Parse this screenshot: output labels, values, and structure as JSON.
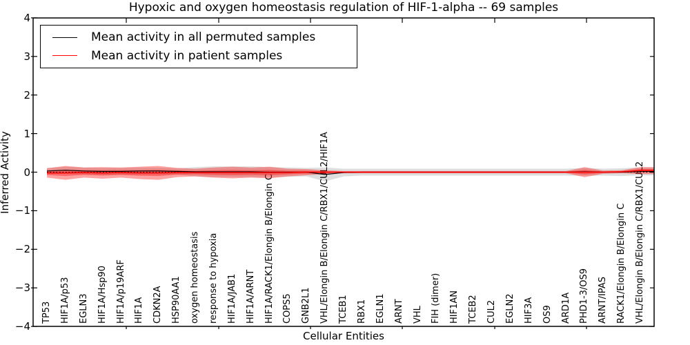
{
  "title": "Hypoxic and oxygen homeostasis regulation of HIF-1-alpha -- 69 samples",
  "axes": {
    "xlabel": "Cellular Entities",
    "ylabel": "Inferred Activity",
    "ylim": [
      -4,
      4
    ],
    "ytick_labels": [
      "4",
      "3",
      "2",
      "1",
      "0",
      "−1",
      "−2",
      "−3",
      "−4"
    ],
    "ytick_values": [
      4,
      3,
      2,
      1,
      0,
      -1,
      -2,
      -3,
      -4
    ]
  },
  "legend": {
    "position": "upper-left",
    "items": [
      {
        "label": "Mean activity in all permuted samples",
        "color": "#000000"
      },
      {
        "label": "Mean activity in patient samples",
        "color": "#ff0000"
      }
    ]
  },
  "chart_data": {
    "type": "line",
    "title": "Hypoxic and oxygen homeostasis regulation of HIF-1-alpha -- 69 samples",
    "xlabel": "Cellular Entities",
    "ylabel": "Inferred Activity",
    "ylim": [
      -4,
      4
    ],
    "grid": false,
    "zero_reference_line": {
      "style": "dotted",
      "color": "#000000",
      "y": 0
    },
    "categories": [
      "TP53",
      "HIF1A/p53",
      "EGLN3",
      "HIF1A/Hsp90",
      "HIF1A/p19ARF",
      "HIF1A",
      "CDKN2A",
      "HSP90AA1",
      "oxygen homeostasis",
      "response to hypoxia",
      "HIF1A/JAB1",
      "HIF1A/ARNT",
      "HIF1A/RACK1/Elongin B/Elongin C",
      "COPS5",
      "GNB2L1",
      "VHL/Elongin B/Elongin C/RBX1/CUL2/HIF1A",
      "TCEB1",
      "RBX1",
      "EGLN1",
      "ARNT",
      "VHL",
      "FIH (dimer)",
      "HIF1AN",
      "TCEB2",
      "CUL2",
      "EGLN2",
      "HIF3A",
      "OS9",
      "ARD1A",
      "PHD1-3/OS9",
      "ARNT/IPAS",
      "RACK1/Elongin B/Elongin C",
      "VHL/Elongin B/Elongin C/RBX1/CUL2"
    ],
    "series": [
      {
        "name": "Mean activity in all permuted samples",
        "color": "#000000",
        "band_color": "#000000",
        "band_opacity": 0.13,
        "values": [
          0.03,
          0.05,
          0.03,
          0.02,
          0.02,
          0.03,
          0.03,
          0.02,
          0.01,
          0.01,
          0.01,
          0.01,
          0.0,
          0.0,
          0.0,
          -0.06,
          -0.01,
          0.0,
          0.0,
          0.0,
          0.0,
          0.0,
          0.0,
          0.0,
          0.0,
          0.0,
          0.0,
          0.0,
          0.0,
          0.01,
          0.0,
          0.0,
          0.02
        ],
        "band": [
          0.08,
          0.09,
          0.09,
          0.09,
          0.09,
          0.09,
          0.09,
          0.08,
          0.12,
          0.14,
          0.14,
          0.14,
          0.13,
          0.12,
          0.11,
          0.18,
          0.1,
          0.09,
          0.09,
          0.09,
          0.09,
          0.09,
          0.09,
          0.09,
          0.09,
          0.09,
          0.09,
          0.09,
          0.09,
          0.1,
          0.09,
          0.1,
          0.1
        ]
      },
      {
        "name": "Mean activity in patient samples",
        "color": "#ff0000",
        "band_color": "#ff0000",
        "band_opacity": 0.36,
        "inner_band_scale": 0.45,
        "values": [
          -0.02,
          -0.02,
          -0.01,
          -0.02,
          -0.01,
          -0.02,
          -0.02,
          -0.01,
          -0.01,
          -0.01,
          -0.01,
          -0.01,
          -0.01,
          -0.01,
          0,
          0,
          0,
          0,
          0,
          0,
          0,
          0,
          0,
          0,
          0,
          0,
          0,
          0,
          0,
          0,
          0,
          0.01,
          0.04
        ],
        "band": [
          0.12,
          0.18,
          0.13,
          0.15,
          0.13,
          0.16,
          0.18,
          0.12,
          0.1,
          0.13,
          0.15,
          0.13,
          0.15,
          0.1,
          0.08,
          0.05,
          0.03,
          0.03,
          0.03,
          0.03,
          0.03,
          0.03,
          0.03,
          0.03,
          0.03,
          0.03,
          0.03,
          0.03,
          0.03,
          0.13,
          0.04,
          0.04,
          0.09
        ]
      }
    ]
  }
}
